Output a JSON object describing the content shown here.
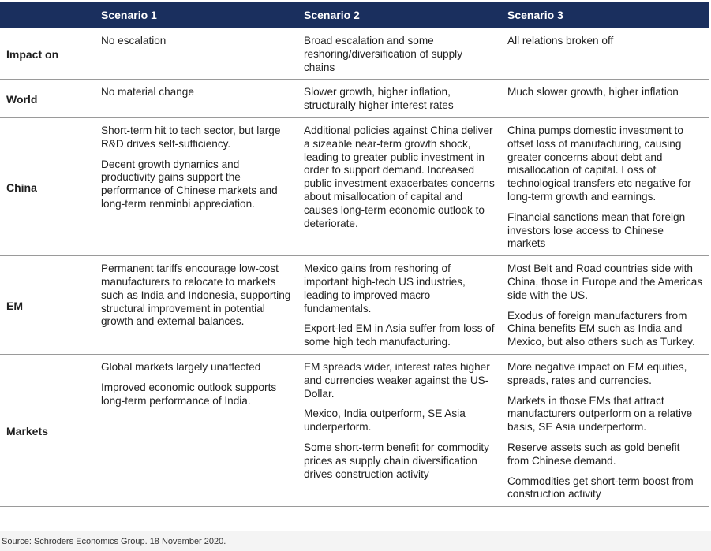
{
  "header": {
    "corner": "",
    "scenarios": [
      "Scenario 1",
      "Scenario 2",
      "Scenario 3"
    ]
  },
  "rows": [
    {
      "label": "Impact on",
      "cells": [
        [
          "No escalation"
        ],
        [
          "Broad escalation and some reshoring/diversification of supply chains"
        ],
        [
          "All relations broken off"
        ]
      ]
    },
    {
      "label": "World",
      "cells": [
        [
          "No material change"
        ],
        [
          "Slower growth, higher inflation, structurally higher interest rates"
        ],
        [
          "Much slower growth, higher inflation"
        ]
      ]
    },
    {
      "label": "China",
      "cells": [
        [
          "Short-term hit to tech sector, but large R&D drives self-sufficiency.",
          "Decent growth dynamics and productivity gains support the performance of Chinese markets and long-term renminbi appreciation."
        ],
        [
          "Additional policies against China deliver a sizeable near-term growth shock, leading to greater public investment in order to support demand. Increased public investment exacerbates concerns about misallocation of capital and causes long-term economic outlook to deteriorate."
        ],
        [
          "China pumps domestic investment to offset loss of manufacturing, causing greater concerns about debt and misallocation of capital. Loss of technological transfers etc negative for long-term growth and earnings.",
          "Financial sanctions mean that foreign investors lose access to Chinese markets"
        ]
      ]
    },
    {
      "label": "EM",
      "cells": [
        [
          "Permanent tariffs encourage low-cost manufacturers to relocate to markets such as India and Indonesia, supporting structural improvement in potential growth and external balances."
        ],
        [
          "Mexico gains from reshoring of important high-tech US industries, leading to improved macro fundamentals.",
          "Export-led EM in Asia suffer from loss of some high tech manufacturing."
        ],
        [
          "Most Belt and Road countries side with China, those in Europe and the Americas side with the US.",
          "Exodus of foreign manufacturers from China benefits EM such as India and Mexico, but also others such as Turkey."
        ]
      ]
    },
    {
      "label": "Markets",
      "cells": [
        [
          "Global markets largely unaffected",
          "Improved economic outlook supports long-term performance of India."
        ],
        [
          "EM spreads wider, interest rates higher and currencies weaker against the US-Dollar.",
          "Mexico, India outperform, SE Asia underperform.",
          "Some short-term benefit for commodity prices as supply chain diversification drives construction activity"
        ],
        [
          "More negative impact on EM equities, spreads, rates and currencies.",
          "Markets in those EMs that attract manufacturers outperform on a relative basis, SE Asia underperform.",
          "Reserve assets such as gold benefit from Chinese demand.",
          "Commodities get short-term boost from construction activity"
        ]
      ]
    }
  ],
  "source": "Source: Schroders Economics Group. 18 November 2020.",
  "colors": {
    "header_bg": "#1a2f5e",
    "header_text": "#ffffff",
    "rule": "#9a9a9a"
  }
}
